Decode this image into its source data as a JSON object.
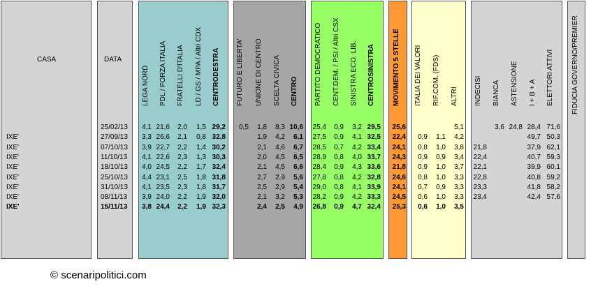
{
  "headers": {
    "casa": "CASA",
    "data": "DATA",
    "cdx": [
      "LEGA NORD",
      "PDL / FORZA ITALIA",
      "FRATELLI D'ITALIA",
      "LD / GS / MPA / Altri CDX",
      "CENTRODESTRA"
    ],
    "centro": [
      "FUTURO E LIBERTA'",
      "UNIONE DI CENTRO",
      "SCELTA CIVICA",
      "CENTRO"
    ],
    "csx": [
      "PARTITO DEMOCRATICO",
      "CENT.DEM. / PSI / Altri CSX",
      "SINISTRA ECO. LIB.",
      "CENTROSINISTRA"
    ],
    "m5s": "MOVIMENTO 5 STELLE",
    "altri": [
      "ITALIA DEI VALORI",
      "RIF.COM. (FDS)",
      "ALTRI"
    ],
    "indecisi": [
      "INDECISI",
      "BIANCA",
      "ASTENSIONE",
      "I + B + A",
      "ELETTORI ATTIVI"
    ],
    "fiducia": "FIDUCIA GOVERNO/PREMIER"
  },
  "rows": [
    {
      "casa": "",
      "data": "25/02/13",
      "cdx": [
        "4,1",
        "21,6",
        "2,0",
        "1,5",
        "29,2"
      ],
      "centro": [
        "0,5",
        "1,8",
        "8,3",
        "10,6"
      ],
      "csx": [
        "25,4",
        "0,9",
        "3,2",
        "29,5"
      ],
      "m5s": "25,6",
      "altri": [
        "",
        "",
        "5,1"
      ],
      "ind": [
        "",
        "3,6",
        "24,8",
        "28,4",
        "71,6"
      ],
      "fid": "",
      "bold": false
    },
    {
      "casa": "IXE'",
      "data": "27/09/13",
      "cdx": [
        "3,3",
        "26,6",
        "2,1",
        "0,8",
        "32,8"
      ],
      "centro": [
        "",
        "1,9",
        "4,2",
        "6,1"
      ],
      "csx": [
        "27,5",
        "0,9",
        "4,1",
        "32,5"
      ],
      "m5s": "22,4",
      "altri": [
        "0,9",
        "1,1",
        "4,2"
      ],
      "ind": [
        "",
        "",
        "",
        "49,7",
        "50,3"
      ],
      "fid": "",
      "bold": false
    },
    {
      "casa": "IXE'",
      "data": "07/10/13",
      "cdx": [
        "3,9",
        "22,7",
        "2,2",
        "1,4",
        "30,2"
      ],
      "centro": [
        "",
        "2,1",
        "4,6",
        "6,7"
      ],
      "csx": [
        "28,5",
        "0,7",
        "4,2",
        "33,4"
      ],
      "m5s": "24,1",
      "altri": [
        "0,8",
        "1,0",
        "3,8"
      ],
      "ind": [
        "21,8",
        "",
        "",
        "37,9",
        "62,1"
      ],
      "fid": "",
      "bold": false
    },
    {
      "casa": "IXE'",
      "data": "11/10/13",
      "cdx": [
        "4,1",
        "22,6",
        "2,3",
        "1,3",
        "30,3"
      ],
      "centro": [
        "",
        "2,0",
        "4,5",
        "6,5"
      ],
      "csx": [
        "28,9",
        "0,8",
        "4,0",
        "33,7"
      ],
      "m5s": "24,3",
      "altri": [
        "0,9",
        "0,9",
        "3,4"
      ],
      "ind": [
        "22,4",
        "",
        "",
        "40,7",
        "59,3"
      ],
      "fid": "",
      "bold": false
    },
    {
      "casa": "IXE'",
      "data": "18/10/13",
      "cdx": [
        "4,0",
        "24,5",
        "2,2",
        "1,7",
        "32,4"
      ],
      "centro": [
        "",
        "2,1",
        "4,5",
        "6,6"
      ],
      "csx": [
        "28,4",
        "0,9",
        "4,3",
        "33,6"
      ],
      "m5s": "21,8",
      "altri": [
        "0,9",
        "1,0",
        "3,7"
      ],
      "ind": [
        "22,1",
        "",
        "",
        "39,9",
        "60,1"
      ],
      "fid": "",
      "bold": false
    },
    {
      "casa": "IXE'",
      "data": "25/10/13",
      "cdx": [
        "4,4",
        "23,1",
        "2,5",
        "1,8",
        "31,8"
      ],
      "centro": [
        "",
        "2,7",
        "2,9",
        "5,6"
      ],
      "csx": [
        "27,8",
        "0,8",
        "4,2",
        "32,8"
      ],
      "m5s": "24,6",
      "altri": [
        "0,8",
        "1,0",
        "3,3"
      ],
      "ind": [
        "22,8",
        "",
        "",
        "40,8",
        "59,2"
      ],
      "fid": "",
      "bold": false
    },
    {
      "casa": "IXE'",
      "data": "31/10/13",
      "cdx": [
        "4,1",
        "23,5",
        "2,3",
        "1,8",
        "31,7"
      ],
      "centro": [
        "",
        "2,5",
        "2,9",
        "5,4"
      ],
      "csx": [
        "29,0",
        "0,8",
        "4,1",
        "33,9"
      ],
      "m5s": "24,1",
      "altri": [
        "0,7",
        "0,9",
        "3,3"
      ],
      "ind": [
        "23,3",
        "",
        "",
        "41,8",
        "58,2"
      ],
      "fid": "",
      "bold": false
    },
    {
      "casa": "IXE'",
      "data": "08/11/13",
      "cdx": [
        "3,9",
        "24,0",
        "2,2",
        "1,9",
        "32,0"
      ],
      "centro": [
        "",
        "2,1",
        "3,2",
        "5,3"
      ],
      "csx": [
        "28,2",
        "0,9",
        "4,2",
        "33,3"
      ],
      "m5s": "24,5",
      "altri": [
        "0,6",
        "1,0",
        "3,3"
      ],
      "ind": [
        "23,4",
        "",
        "",
        "42,4",
        "57,6"
      ],
      "fid": "",
      "bold": false
    },
    {
      "casa": "IXE'",
      "data": "15/11/13",
      "cdx": [
        "3,8",
        "24,4",
        "2,2",
        "1,9",
        "32,3"
      ],
      "centro": [
        "",
        "2,4",
        "2,5",
        "4,9"
      ],
      "csx": [
        "26,8",
        "0,9",
        "4,7",
        "32,4"
      ],
      "m5s": "25,3",
      "altri": [
        "0,6",
        "1,0",
        "3,5"
      ],
      "ind": [
        "",
        "",
        "",
        "",
        ""
      ],
      "fid": "",
      "bold": true
    }
  ],
  "footer": {
    "copyright": "© scenaripolitici.com"
  },
  "colors": {
    "gray": "#d4d4d4",
    "teal": "#99cccc",
    "darkgray": "#a6a6a6",
    "green": "#99ff66",
    "orange": "#ff9933",
    "yellow": "#ffffcc",
    "lightgray": "#e7e7e7"
  }
}
